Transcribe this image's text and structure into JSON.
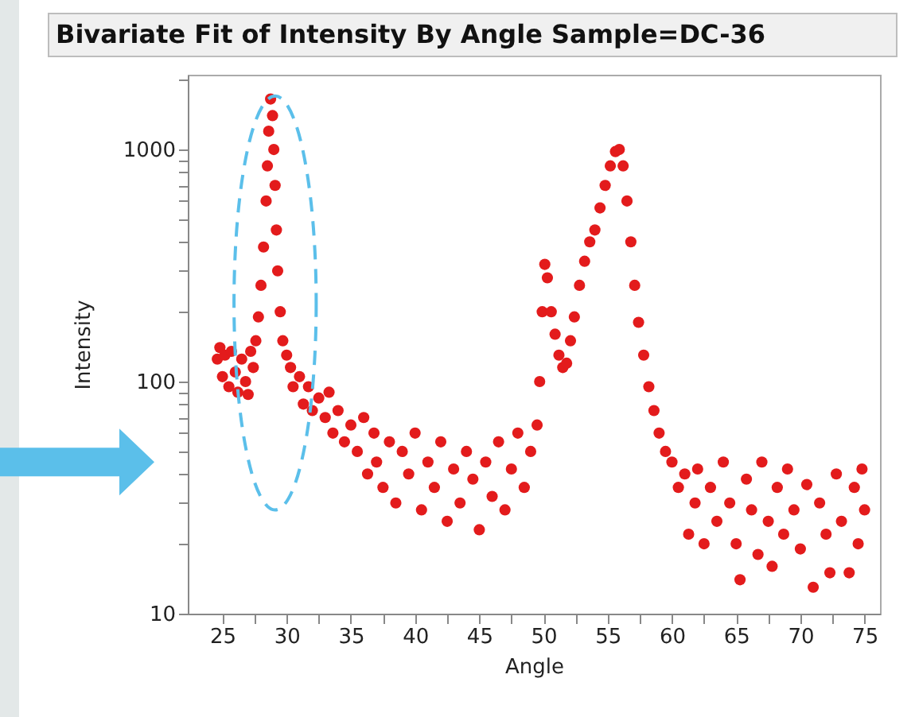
{
  "chart_data": {
    "type": "scatter",
    "title": "Bivariate Fit of Intensity By Angle Sample=DC-36",
    "xlabel": "Angle",
    "ylabel": "Intensity",
    "log": "y",
    "grid": false,
    "marker": "circle",
    "xlim": [
      22.3,
      76.2
    ],
    "ylim": [
      10,
      2100
    ],
    "xticks": [
      25,
      {
        "value": 27.5,
        "label": null
      },
      30,
      {
        "value": 32.5,
        "label": null
      },
      35,
      {
        "value": 37.5,
        "label": null
      },
      40,
      {
        "value": 42.5,
        "label": null
      },
      45,
      {
        "value": 47.5,
        "label": null
      },
      50,
      {
        "value": 52.5,
        "label": null
      },
      55,
      {
        "value": 57.5,
        "label": null
      },
      60,
      {
        "value": 62.5,
        "label": null
      },
      65,
      {
        "value": 67.5,
        "label": null
      },
      70,
      {
        "value": 72.5,
        "label": null
      },
      75
    ],
    "yticks": [
      10,
      {
        "value": 20,
        "label": null
      },
      {
        "value": 30,
        "label": null
      },
      {
        "value": 40,
        "label": null
      },
      {
        "value": 50,
        "label": null
      },
      {
        "value": 60,
        "label": null
      },
      {
        "value": 70,
        "label": null
      },
      {
        "value": 80,
        "label": null
      },
      {
        "value": 90,
        "label": null
      },
      100,
      {
        "value": 200,
        "label": null
      },
      {
        "value": 300,
        "label": null
      },
      {
        "value": 400,
        "label": null
      },
      {
        "value": 500,
        "label": null
      },
      {
        "value": 600,
        "label": null
      },
      {
        "value": 700,
        "label": null
      },
      {
        "value": 800,
        "label": null
      },
      {
        "value": 900,
        "label": null
      },
      1000,
      {
        "value": 2000,
        "label": null
      }
    ],
    "series": [
      {
        "color": "#e31b1c",
        "x": [
          24.6,
          24.8,
          25.0,
          25.2,
          25.5,
          25.7,
          26.0,
          26.2,
          26.5,
          26.8,
          27.0,
          27.2,
          27.4,
          27.6,
          27.8,
          28.0,
          28.2,
          28.4,
          28.5,
          28.6,
          28.75,
          28.9,
          29.0,
          29.1,
          29.2,
          29.3,
          29.5,
          29.7,
          30.0,
          30.3,
          30.5,
          31.0,
          31.3,
          31.7,
          32.0,
          32.5,
          33.0,
          33.3,
          33.6,
          34.0,
          34.5,
          35.0,
          35.5,
          36.0,
          36.3,
          36.8,
          37.0,
          37.5,
          38.0,
          38.5,
          39.0,
          39.5,
          40.0,
          40.5,
          41.0,
          41.5,
          42.0,
          42.5,
          43.0,
          43.5,
          44.0,
          44.5,
          45.0,
          45.5,
          46.0,
          46.5,
          47.0,
          47.5,
          48.0,
          48.5,
          49.0,
          49.5,
          49.7,
          49.9,
          50.1,
          50.3,
          50.6,
          50.9,
          51.2,
          51.5,
          51.8,
          52.1,
          52.4,
          52.8,
          53.2,
          53.6,
          54.0,
          54.4,
          54.8,
          55.2,
          55.6,
          55.9,
          56.2,
          56.5,
          56.8,
          57.1,
          57.4,
          57.8,
          58.2,
          58.6,
          59.0,
          59.5,
          60.0,
          60.5,
          61.0,
          61.3,
          61.8,
          62.0,
          62.5,
          63.0,
          63.5,
          64.0,
          64.5,
          65.0,
          65.3,
          65.8,
          66.2,
          66.7,
          67.0,
          67.5,
          67.8,
          68.2,
          68.7,
          69.0,
          69.5,
          70.0,
          70.5,
          71.0,
          71.5,
          72.0,
          72.3,
          72.8,
          73.2,
          73.8,
          74.2,
          74.5,
          74.8,
          75.0
        ],
        "values": [
          125,
          140,
          105,
          130,
          95,
          135,
          110,
          90,
          125,
          100,
          88,
          135,
          115,
          150,
          190,
          260,
          380,
          600,
          850,
          1200,
          1650,
          1400,
          1000,
          700,
          450,
          300,
          200,
          150,
          130,
          115,
          95,
          105,
          80,
          95,
          75,
          85,
          70,
          90,
          60,
          75,
          55,
          65,
          50,
          70,
          40,
          60,
          45,
          35,
          55,
          30,
          50,
          40,
          60,
          28,
          45,
          35,
          55,
          25,
          42,
          30,
          50,
          38,
          23,
          45,
          32,
          55,
          28,
          42,
          60,
          35,
          50,
          65,
          100,
          200,
          320,
          280,
          200,
          160,
          130,
          115,
          120,
          150,
          190,
          260,
          330,
          400,
          450,
          560,
          700,
          850,
          980,
          1000,
          850,
          600,
          400,
          260,
          180,
          130,
          95,
          75,
          60,
          50,
          45,
          35,
          40,
          22,
          30,
          42,
          20,
          35,
          25,
          45,
          30,
          20,
          14,
          38,
          28,
          18,
          45,
          25,
          16,
          35,
          22,
          42,
          28,
          19,
          36,
          13,
          30,
          22,
          15,
          40,
          25,
          15,
          35,
          20,
          42,
          28
        ]
      }
    ]
  }
}
